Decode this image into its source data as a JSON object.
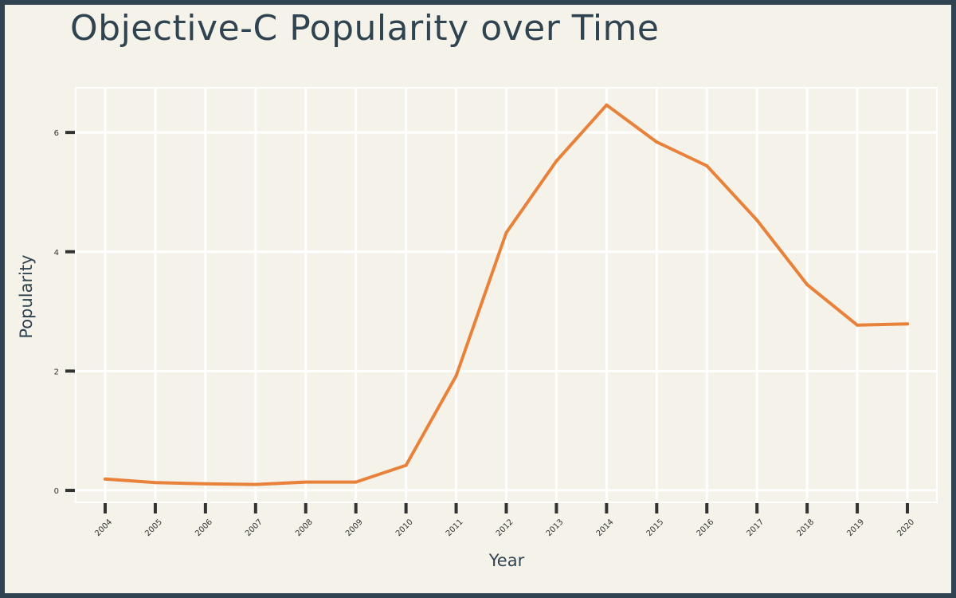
{
  "chart_data": {
    "type": "line",
    "title": "Objective-C Popularity over Time",
    "xlabel": "Year",
    "ylabel": "Popularity",
    "x": [
      "2004",
      "2005",
      "2006",
      "2007",
      "2008",
      "2009",
      "2010",
      "2011",
      "2012",
      "2013",
      "2014",
      "2015",
      "2016",
      "2017",
      "2018",
      "2019",
      "2020"
    ],
    "series": [
      {
        "values": [
          0.19,
          0.13,
          0.11,
          0.1,
          0.14,
          0.14,
          0.42,
          1.92,
          4.32,
          5.52,
          6.46,
          5.84,
          5.44,
          4.53,
          3.45,
          2.77,
          2.79
        ],
        "color": "#e8823a"
      }
    ],
    "yticks": [
      "0",
      "2",
      "4",
      "6"
    ],
    "ylim": [
      -0.2,
      6.75
    ],
    "grid": true,
    "legend": "none",
    "colors": {
      "line": "#e8823a",
      "background": "#f5f2ea",
      "border": "#2f4450",
      "grid": "#ffffff",
      "text": "#2f4450"
    }
  }
}
